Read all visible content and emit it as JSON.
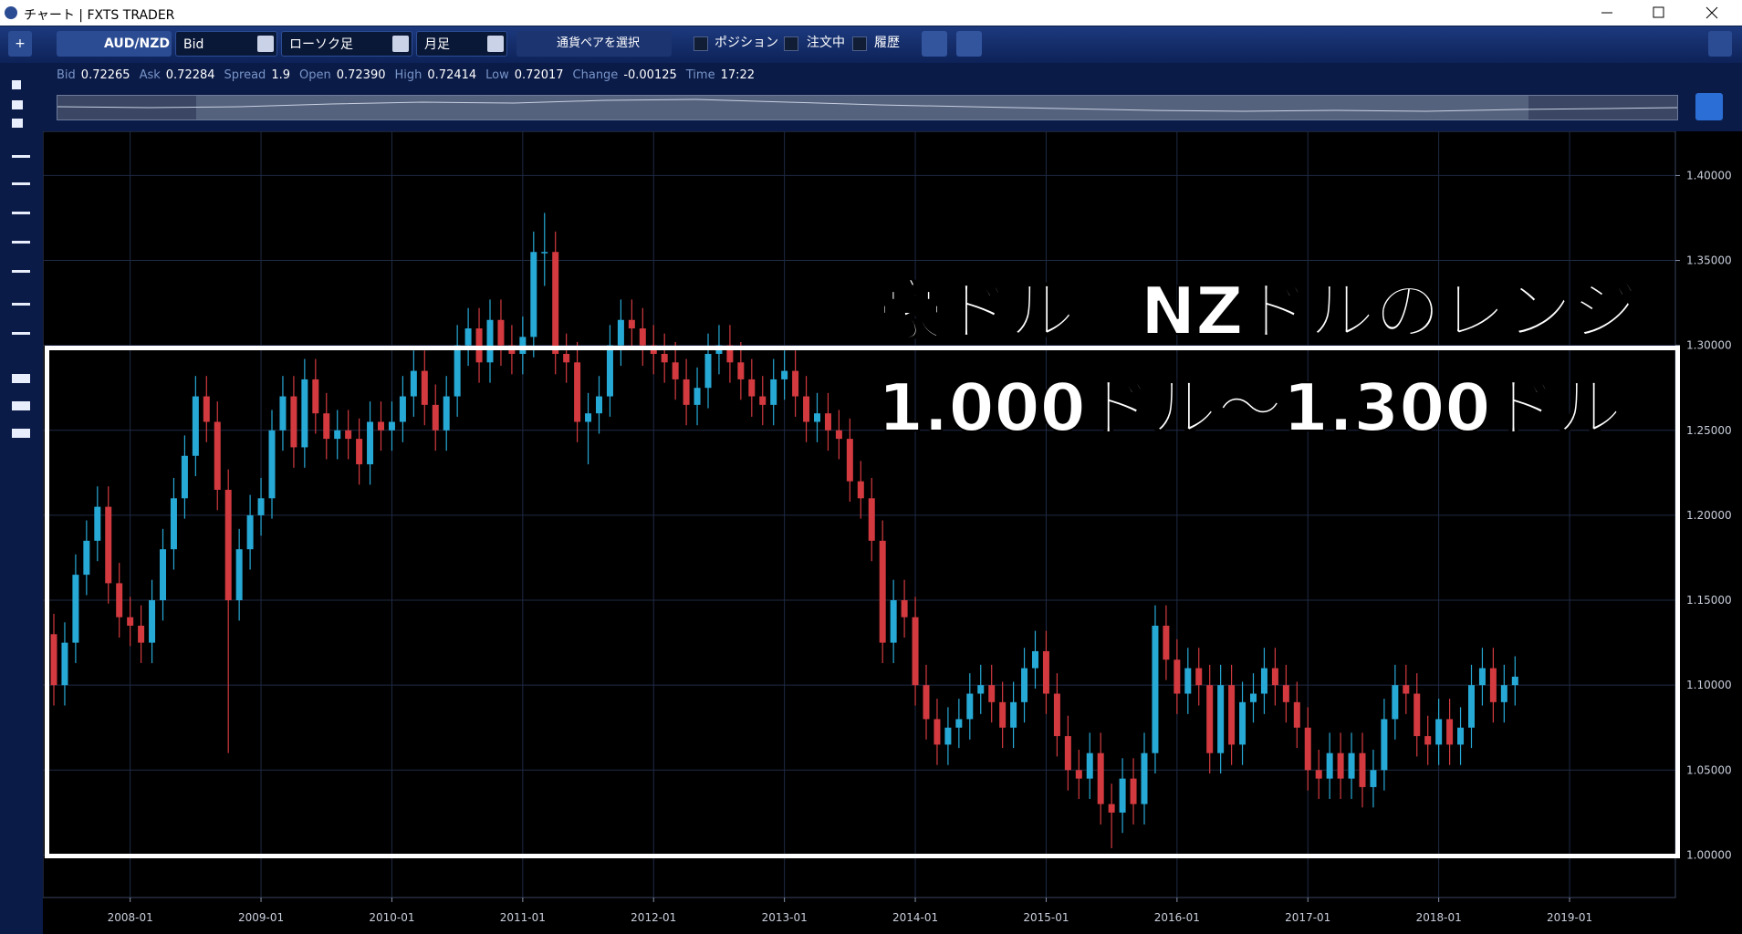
{
  "window": {
    "title": "チャート | FXTS TRADER"
  },
  "toolbar": {
    "symbol": "AUD/NZD",
    "price_type": "Bid",
    "chart_style": "ローソク足",
    "timeframe": "月足",
    "pair_button": "通貨ペアを選択",
    "filters": [
      "ポジション",
      "注文中",
      "履歴"
    ]
  },
  "quote": [
    {
      "label": "Bid",
      "value": "0.72265"
    },
    {
      "label": "Ask",
      "value": "0.72284"
    },
    {
      "label": "Spread",
      "value": "1.9"
    },
    {
      "label": "Open",
      "value": "0.72390"
    },
    {
      "label": "High",
      "value": "0.72414"
    },
    {
      "label": "Low",
      "value": "0.72017"
    },
    {
      "label": "Change",
      "value": "-0.00125"
    },
    {
      "label": "Time",
      "value": "17:22"
    }
  ],
  "annotation": {
    "line1": "豪ドル／NZドルのレンジ",
    "line2": "1.000ドル～1.300ドル"
  },
  "chart_data": {
    "type": "candlestick",
    "up_color": "#27a9d6",
    "down_color": "#d23a3f",
    "grid": true,
    "x": [
      "2007-06",
      "2007-07",
      "2007-08",
      "2007-09",
      "2007-10",
      "2007-11",
      "2007-12",
      "2008-01",
      "2008-02",
      "2008-03",
      "2008-04",
      "2008-05",
      "2008-06",
      "2008-07",
      "2008-08",
      "2008-09",
      "2008-10",
      "2008-11",
      "2008-12",
      "2009-01",
      "2009-02",
      "2009-03",
      "2009-04",
      "2009-05",
      "2009-06",
      "2009-07",
      "2009-08",
      "2009-09",
      "2009-10",
      "2009-11",
      "2009-12",
      "2010-01",
      "2010-02",
      "2010-03",
      "2010-04",
      "2010-05",
      "2010-06",
      "2010-07",
      "2010-08",
      "2010-09",
      "2010-10",
      "2010-11",
      "2010-12",
      "2011-01",
      "2011-02",
      "2011-03",
      "2011-04",
      "2011-05",
      "2011-06",
      "2011-07",
      "2011-08",
      "2011-09",
      "2011-10",
      "2011-11",
      "2011-12",
      "2012-01",
      "2012-02",
      "2012-03",
      "2012-04",
      "2012-05",
      "2012-06",
      "2012-07",
      "2012-08",
      "2012-09",
      "2012-10",
      "2012-11",
      "2012-12",
      "2013-01",
      "2013-02",
      "2013-03",
      "2013-04",
      "2013-05",
      "2013-06",
      "2013-07",
      "2013-08",
      "2013-09",
      "2013-10",
      "2013-11",
      "2013-12",
      "2014-01",
      "2014-02",
      "2014-03",
      "2014-04",
      "2014-05",
      "2014-06",
      "2014-07",
      "2014-08",
      "2014-09",
      "2014-10",
      "2014-11",
      "2014-12",
      "2015-01",
      "2015-02",
      "2015-03",
      "2015-04",
      "2015-05",
      "2015-06",
      "2015-07",
      "2015-08",
      "2015-09",
      "2015-10",
      "2015-11",
      "2015-12",
      "2016-01",
      "2016-02",
      "2016-03",
      "2016-04",
      "2016-05",
      "2016-06",
      "2016-07",
      "2016-08",
      "2016-09",
      "2016-10",
      "2016-11",
      "2016-12",
      "2017-01",
      "2017-02",
      "2017-03",
      "2017-04",
      "2017-05",
      "2017-06",
      "2017-07",
      "2017-08",
      "2017-09",
      "2017-10",
      "2017-11",
      "2017-12",
      "2018-01",
      "2018-02",
      "2018-03",
      "2018-04",
      "2018-05",
      "2018-06",
      "2018-07",
      "2018-08"
    ],
    "open": [
      1.13,
      1.1,
      1.125,
      1.165,
      1.185,
      1.205,
      1.16,
      1.14,
      1.135,
      1.125,
      1.15,
      1.18,
      1.21,
      1.235,
      1.27,
      1.255,
      1.215,
      1.15,
      1.18,
      1.2,
      1.21,
      1.25,
      1.27,
      1.24,
      1.28,
      1.26,
      1.245,
      1.25,
      1.245,
      1.23,
      1.255,
      1.25,
      1.255,
      1.27,
      1.285,
      1.265,
      1.25,
      1.27,
      1.3,
      1.31,
      1.29,
      1.315,
      1.3,
      1.295,
      1.305,
      1.355,
      1.355,
      1.295,
      1.29,
      1.255,
      1.26,
      1.27,
      1.3,
      1.315,
      1.31,
      1.3,
      1.295,
      1.29,
      1.28,
      1.265,
      1.275,
      1.295,
      1.3,
      1.29,
      1.28,
      1.27,
      1.265,
      1.28,
      1.285,
      1.27,
      1.255,
      1.26,
      1.25,
      1.245,
      1.22,
      1.21,
      1.185,
      1.125,
      1.15,
      1.14,
      1.1,
      1.08,
      1.065,
      1.075,
      1.08,
      1.095,
      1.1,
      1.09,
      1.075,
      1.09,
      1.11,
      1.12,
      1.095,
      1.07,
      1.05,
      1.045,
      1.06,
      1.03,
      1.025,
      1.045,
      1.03,
      1.06,
      1.135,
      1.115,
      1.095,
      1.11,
      1.1,
      1.06,
      1.1,
      1.065,
      1.09,
      1.095,
      1.11,
      1.1,
      1.09,
      1.075,
      1.05,
      1.045,
      1.06,
      1.045,
      1.06,
      1.04,
      1.05,
      1.08,
      1.1,
      1.095,
      1.07,
      1.065,
      1.08,
      1.065,
      1.075,
      1.1,
      1.11,
      1.09,
      1.1
    ],
    "high": [
      1.142,
      1.137,
      1.177,
      1.197,
      1.217,
      1.217,
      1.172,
      1.152,
      1.147,
      1.162,
      1.192,
      1.222,
      1.247,
      1.282,
      1.282,
      1.267,
      1.227,
      1.192,
      1.212,
      1.222,
      1.262,
      1.282,
      1.282,
      1.292,
      1.292,
      1.272,
      1.262,
      1.262,
      1.257,
      1.267,
      1.267,
      1.267,
      1.282,
      1.297,
      1.297,
      1.277,
      1.282,
      1.312,
      1.322,
      1.322,
      1.327,
      1.327,
      1.312,
      1.317,
      1.367,
      1.378,
      1.367,
      1.307,
      1.302,
      1.272,
      1.282,
      1.312,
      1.327,
      1.327,
      1.322,
      1.312,
      1.307,
      1.302,
      1.292,
      1.287,
      1.307,
      1.312,
      1.312,
      1.302,
      1.292,
      1.282,
      1.292,
      1.297,
      1.297,
      1.282,
      1.272,
      1.272,
      1.262,
      1.257,
      1.232,
      1.222,
      1.197,
      1.162,
      1.162,
      1.152,
      1.112,
      1.092,
      1.087,
      1.092,
      1.107,
      1.112,
      1.112,
      1.102,
      1.102,
      1.122,
      1.132,
      1.132,
      1.107,
      1.082,
      1.062,
      1.072,
      1.072,
      1.042,
      1.057,
      1.057,
      1.072,
      1.147,
      1.147,
      1.127,
      1.122,
      1.122,
      1.112,
      1.112,
      1.112,
      1.102,
      1.107,
      1.122,
      1.122,
      1.112,
      1.102,
      1.087,
      1.062,
      1.072,
      1.072,
      1.072,
      1.072,
      1.062,
      1.092,
      1.112,
      1.112,
      1.107,
      1.082,
      1.092,
      1.092,
      1.087,
      1.112,
      1.122,
      1.122,
      1.112,
      1.117
    ],
    "low": [
      1.088,
      1.088,
      1.113,
      1.153,
      1.173,
      1.148,
      1.128,
      1.123,
      1.113,
      1.113,
      1.138,
      1.168,
      1.198,
      1.223,
      1.243,
      1.203,
      1.06,
      1.138,
      1.168,
      1.188,
      1.198,
      1.238,
      1.228,
      1.228,
      1.248,
      1.233,
      1.233,
      1.233,
      1.218,
      1.218,
      1.238,
      1.238,
      1.243,
      1.258,
      1.253,
      1.238,
      1.238,
      1.258,
      1.288,
      1.278,
      1.278,
      1.288,
      1.283,
      1.283,
      1.293,
      1.335,
      1.283,
      1.278,
      1.243,
      1.23,
      1.248,
      1.258,
      1.288,
      1.298,
      1.288,
      1.283,
      1.278,
      1.268,
      1.253,
      1.253,
      1.263,
      1.283,
      1.278,
      1.268,
      1.258,
      1.253,
      1.253,
      1.268,
      1.258,
      1.243,
      1.243,
      1.238,
      1.233,
      1.208,
      1.198,
      1.173,
      1.113,
      1.113,
      1.128,
      1.088,
      1.068,
      1.053,
      1.053,
      1.063,
      1.068,
      1.083,
      1.078,
      1.063,
      1.063,
      1.078,
      1.098,
      1.083,
      1.058,
      1.038,
      1.033,
      1.033,
      1.018,
      1.004,
      1.013,
      1.018,
      1.018,
      1.048,
      1.103,
      1.083,
      1.083,
      1.088,
      1.048,
      1.048,
      1.053,
      1.053,
      1.078,
      1.083,
      1.088,
      1.078,
      1.063,
      1.038,
      1.033,
      1.033,
      1.033,
      1.033,
      1.028,
      1.028,
      1.038,
      1.068,
      1.083,
      1.058,
      1.053,
      1.053,
      1.053,
      1.053,
      1.063,
      1.088,
      1.078,
      1.078,
      1.088
    ],
    "close": [
      1.1,
      1.125,
      1.165,
      1.185,
      1.205,
      1.16,
      1.14,
      1.135,
      1.125,
      1.15,
      1.18,
      1.21,
      1.235,
      1.27,
      1.255,
      1.215,
      1.15,
      1.18,
      1.2,
      1.21,
      1.25,
      1.27,
      1.24,
      1.28,
      1.26,
      1.245,
      1.25,
      1.245,
      1.23,
      1.255,
      1.25,
      1.255,
      1.27,
      1.285,
      1.265,
      1.25,
      1.27,
      1.3,
      1.31,
      1.29,
      1.315,
      1.3,
      1.295,
      1.305,
      1.355,
      1.355,
      1.295,
      1.29,
      1.255,
      1.26,
      1.27,
      1.3,
      1.315,
      1.31,
      1.3,
      1.295,
      1.29,
      1.28,
      1.265,
      1.275,
      1.295,
      1.3,
      1.29,
      1.28,
      1.27,
      1.265,
      1.28,
      1.285,
      1.27,
      1.255,
      1.26,
      1.25,
      1.245,
      1.22,
      1.21,
      1.185,
      1.125,
      1.15,
      1.14,
      1.1,
      1.08,
      1.065,
      1.075,
      1.08,
      1.095,
      1.1,
      1.09,
      1.075,
      1.09,
      1.11,
      1.12,
      1.095,
      1.07,
      1.05,
      1.045,
      1.06,
      1.03,
      1.025,
      1.045,
      1.03,
      1.06,
      1.135,
      1.115,
      1.095,
      1.11,
      1.1,
      1.06,
      1.1,
      1.065,
      1.09,
      1.095,
      1.11,
      1.1,
      1.09,
      1.075,
      1.05,
      1.045,
      1.06,
      1.045,
      1.06,
      1.04,
      1.05,
      1.08,
      1.1,
      1.095,
      1.07,
      1.065,
      1.08,
      1.065,
      1.075,
      1.1,
      1.11,
      1.09,
      1.1,
      1.105
    ],
    "ylim": [
      0.975,
      1.426
    ],
    "yticks": [
      {
        "value": 1.0,
        "label": "1.00000"
      },
      {
        "value": 1.05,
        "label": "1.05000"
      },
      {
        "value": 1.1,
        "label": "1.10000"
      },
      {
        "value": 1.15,
        "label": "1.15000"
      },
      {
        "value": 1.2,
        "label": "1.20000"
      },
      {
        "value": 1.25,
        "label": "1.25000"
      },
      {
        "value": 1.3,
        "label": "1.30000"
      },
      {
        "value": 1.35,
        "label": "1.35000"
      },
      {
        "value": 1.4,
        "label": "1.40000"
      }
    ],
    "xticks": [
      "2008-01",
      "2009-01",
      "2010-01",
      "2011-01",
      "2012-01",
      "2013-01",
      "2014-01",
      "2015-01",
      "2016-01",
      "2017-01",
      "2018-01",
      "2019-01"
    ]
  }
}
